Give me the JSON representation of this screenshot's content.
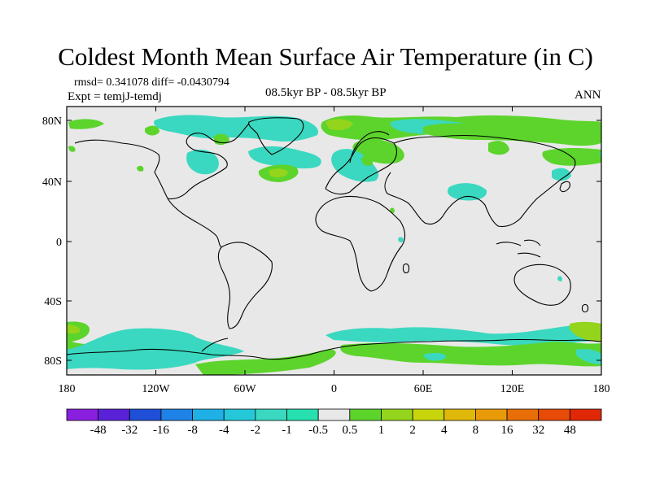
{
  "title": "Coldest Month Mean Surface Air Temperature (in C)",
  "stats": "rmsd= 0.341078 diff= -0.0430794",
  "expt": "Expt = temjJ-temdj",
  "period": "08.5kyr BP - 08.5kyr BP",
  "season": "ANN",
  "lat_ticks": [
    "80N",
    "40N",
    "0",
    "40S",
    "80S"
  ],
  "lon_ticks": [
    "180",
    "120W",
    "60W",
    "0",
    "60E",
    "120E",
    "180"
  ],
  "colorbar": {
    "labels": [
      "-48",
      "-32",
      "-16",
      "-8",
      "-4",
      "-2",
      "-1",
      "-0.5",
      "0.5",
      "1",
      "2",
      "4",
      "8",
      "16",
      "32",
      "48"
    ],
    "colors": [
      "#8a1fe0",
      "#5a22d8",
      "#1f4fd6",
      "#1e82e6",
      "#1fb0e6",
      "#24c8d8",
      "#3ad8c0",
      "#26e0b0",
      "#e8e8e8",
      "#5cd42c",
      "#94d41c",
      "#c8d40c",
      "#e0b80a",
      "#e89a08",
      "#e86e08",
      "#e84a08",
      "#e02808"
    ]
  },
  "map_colors": {
    "background": "#e8e8e8",
    "neg_small": "#3ad8c0",
    "pos_small": "#5cd42c",
    "pos_mid": "#94d41c",
    "pos_high": "#c8d40c",
    "coast": "#000000"
  }
}
